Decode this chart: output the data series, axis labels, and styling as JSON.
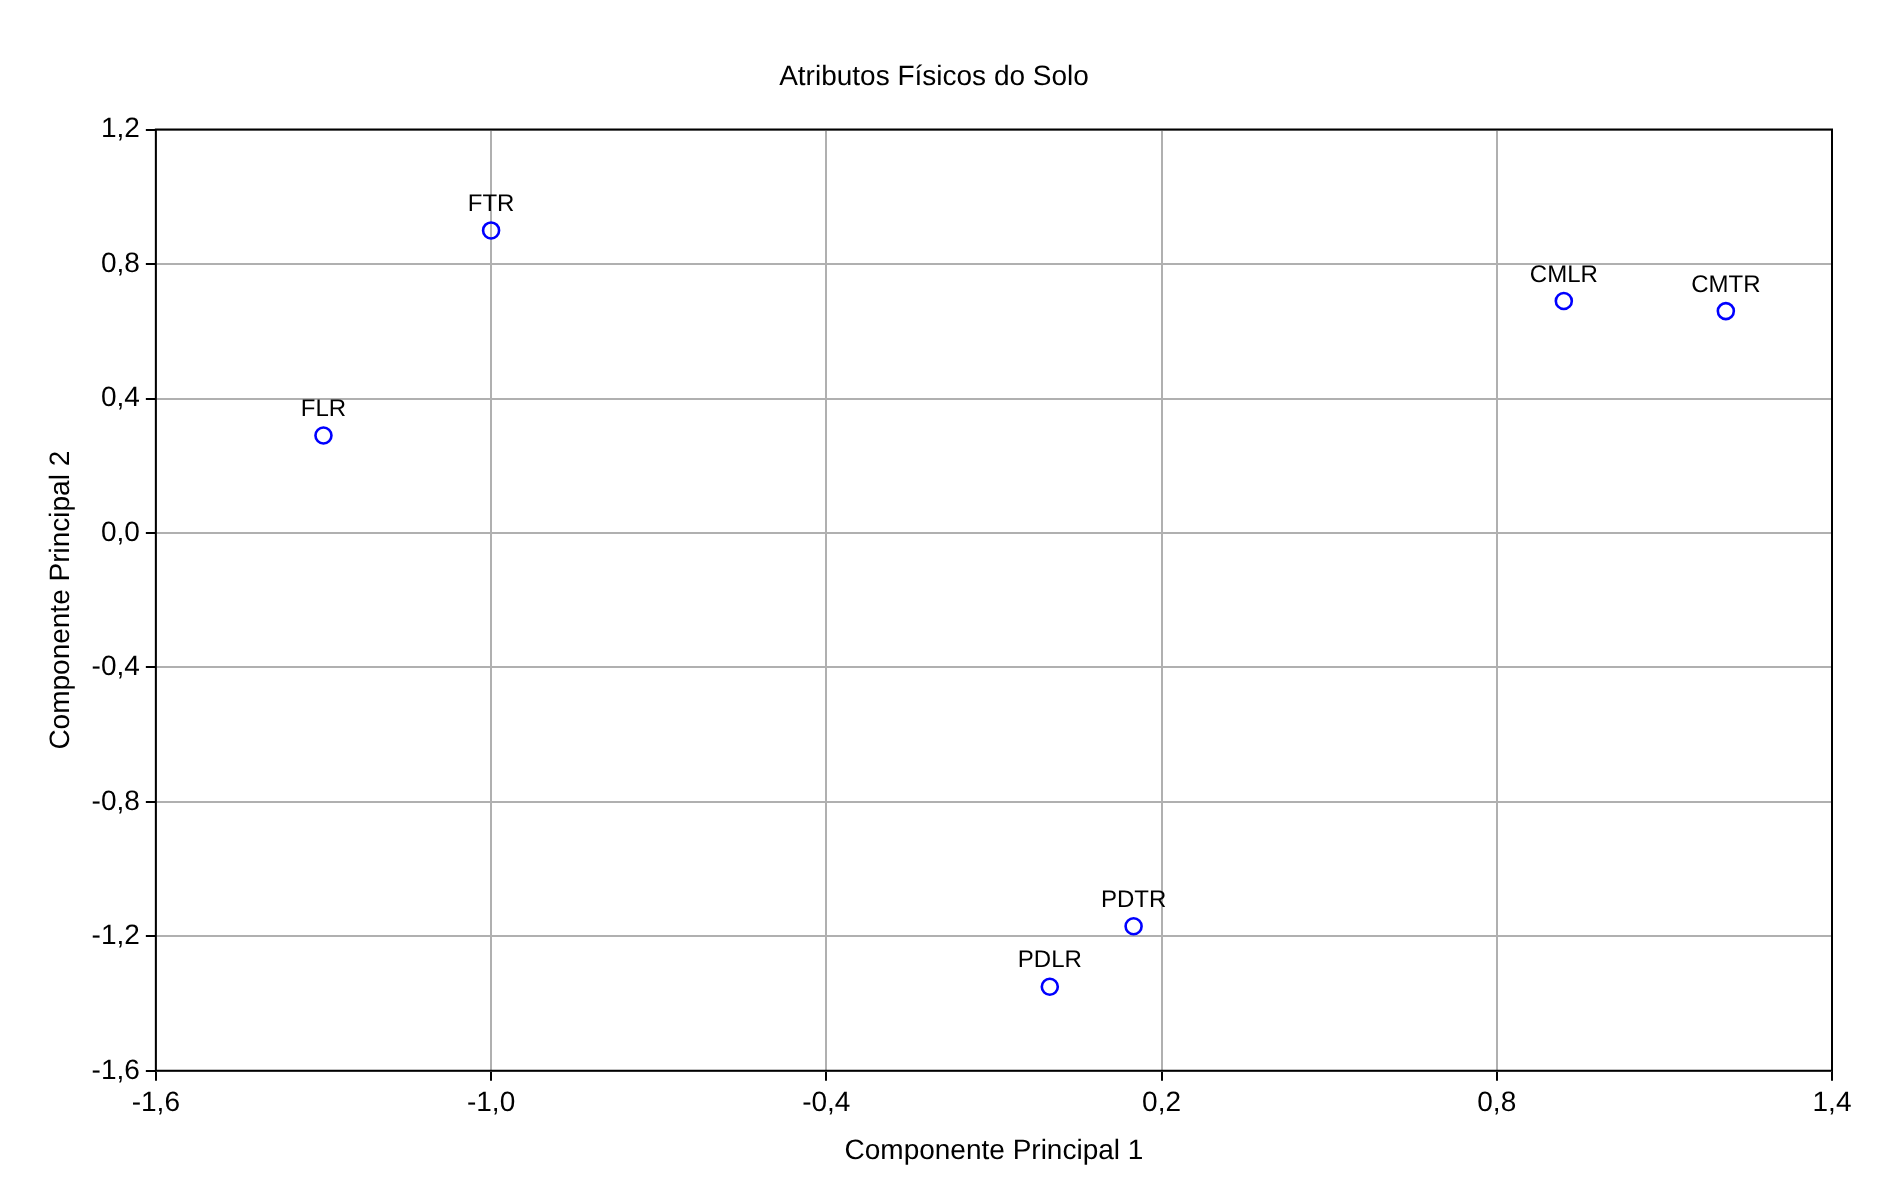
{
  "chart_data": {
    "type": "scatter",
    "title": "Atributos Físicos do Solo",
    "xlabel": "Componente Principal 1",
    "ylabel": "Componente Principal 2",
    "x": [
      -1.0,
      -1.3,
      0.92,
      1.21,
      0.15,
      0.0
    ],
    "series": [
      {
        "color": "#0000ff",
        "values": [
          0.9,
          0.29,
          0.69,
          0.66,
          -1.17,
          -1.35
        ],
        "value_labels": [
          "FTR",
          "FLR",
          "CMLR",
          "CMTR",
          "PDTR",
          "PDLR"
        ]
      }
    ],
    "xlim": [
      -1.6,
      1.4
    ],
    "xticks": [
      {
        "value": -1.6,
        "label": "-1,6"
      },
      {
        "value": -1.0,
        "label": "-1,0"
      },
      {
        "value": -0.4,
        "label": "-0,4"
      },
      {
        "value": 0.2,
        "label": "0,2"
      },
      {
        "value": 0.8,
        "label": "0,8"
      },
      {
        "value": 1.4,
        "label": "1,4"
      }
    ],
    "ylim": [
      -1.6,
      1.2
    ],
    "yticks": [
      {
        "value": -1.6,
        "label": "-1,6"
      },
      {
        "value": -1.2,
        "label": "-1,2"
      },
      {
        "value": -0.8,
        "label": "-0,8"
      },
      {
        "value": -0.4,
        "label": "-0,4"
      },
      {
        "value": 0.0,
        "label": "0,0"
      },
      {
        "value": 0.4,
        "label": "0,4"
      },
      {
        "value": 0.8,
        "label": "0,8"
      },
      {
        "value": 1.2,
        "label": "1,2"
      }
    ],
    "grid": true,
    "marker": "circle",
    "legend": false
  }
}
